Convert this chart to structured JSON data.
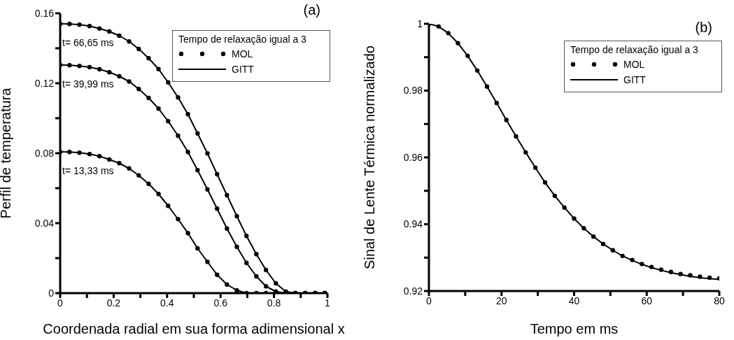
{
  "chart_data": [
    {
      "type": "line",
      "xlabel": "Coordenada radial em sua forma adimensional x",
      "ylabel": "Perfil de temperatura",
      "legend_title": "Tempo de relaxação igual a 3",
      "legend": "top right",
      "annotations": [
        "(a)",
        "t= 66,65 ms",
        "t= 39,99 ms",
        "t= 13,33 ms"
      ],
      "xlim": [
        0,
        1
      ],
      "xticks": [
        0,
        {
          "value": 0.1,
          "label": null
        },
        0.2,
        {
          "value": 0.3,
          "label": null
        },
        0.4,
        {
          "value": 0.5,
          "label": null
        },
        0.6,
        {
          "value": 0.7,
          "label": null
        },
        0.8,
        {
          "value": 0.9,
          "label": null
        },
        1
      ],
      "ylim": [
        0,
        0.16
      ],
      "yticks": [
        0,
        {
          "value": 0.02,
          "label": null
        },
        0.04,
        {
          "value": 0.06,
          "label": null
        },
        0.08,
        {
          "value": 0.1,
          "label": null
        },
        0.12,
        {
          "value": 0.14,
          "label": null
        },
        0.16
      ],
      "x": [
        0,
        0.035,
        0.072,
        0.11,
        0.147,
        0.184,
        0.221,
        0.258,
        0.294,
        0.331,
        0.368,
        0.404,
        0.441,
        0.478,
        0.514,
        0.551,
        0.587,
        0.624,
        0.661,
        0.697,
        0.734,
        0.77,
        0.807,
        0.844,
        0.88,
        0.917,
        0.954,
        0.99
      ],
      "series": [
        {
          "name": "MOL",
          "type": "scatter",
          "marker": "circle",
          "color": "#000000",
          "values": [
            0.154,
            0.1539,
            0.1535,
            0.1527,
            0.1513,
            0.1496,
            0.1472,
            0.1439,
            0.1396,
            0.1343,
            0.1281,
            0.1205,
            0.1119,
            0.1023,
            0.0913,
            0.0799,
            0.068,
            0.056,
            0.044,
            0.0327,
            0.0223,
            0.0132,
            0.0056,
            0.0009,
            0,
            0,
            0,
            0
          ]
        },
        {
          "type": "scatter",
          "marker": "circle",
          "color": "#000000",
          "values": [
            0.1305,
            0.1303,
            0.1299,
            0.1292,
            0.128,
            0.1263,
            0.124,
            0.121,
            0.1167,
            0.1116,
            0.1055,
            0.0983,
            0.09,
            0.0807,
            0.0703,
            0.0593,
            0.0483,
            0.0369,
            0.0265,
            0.0173,
            0.0096,
            0.0039,
            0.0009,
            null,
            0,
            0,
            0,
            0
          ]
        },
        {
          "type": "scatter",
          "marker": "circle",
          "color": "#000000",
          "values": [
            0.0808,
            0.0807,
            0.0803,
            0.0795,
            0.0783,
            0.0764,
            0.0743,
            0.0713,
            0.0673,
            0.0625,
            0.0567,
            0.0499,
            0.0423,
            0.0343,
            0.0256,
            0.0179,
            0.0105,
            0.0049,
            0.0016,
            0,
            0,
            0,
            null,
            null,
            0,
            0,
            0,
            0
          ]
        },
        {
          "name": "GITT",
          "line_style": "solid",
          "color": "#000000",
          "values": [
            0.154,
            0.1539,
            0.1535,
            0.1527,
            0.1513,
            0.1496,
            0.1472,
            0.1439,
            0.1396,
            0.1343,
            0.1281,
            0.1205,
            0.1119,
            0.1023,
            0.0913,
            0.0799,
            0.068,
            0.056,
            0.044,
            0.0327,
            0.0223,
            0.0132,
            0.0056,
            0.0009,
            0,
            0,
            0,
            0
          ]
        },
        {
          "line_style": "solid",
          "color": "#000000",
          "values": [
            0.1305,
            0.1303,
            0.1299,
            0.1292,
            0.128,
            0.1263,
            0.124,
            0.121,
            0.1167,
            0.1116,
            0.1055,
            0.0983,
            0.09,
            0.0807,
            0.0703,
            0.0593,
            0.0483,
            0.0369,
            0.0265,
            0.0173,
            0.0096,
            0.0039,
            0.0009,
            0,
            0,
            0,
            0,
            0
          ]
        },
        {
          "line_style": "solid",
          "color": "#000000",
          "values": [
            0.0808,
            0.0807,
            0.0803,
            0.0795,
            0.0783,
            0.0764,
            0.0743,
            0.0713,
            0.0673,
            0.0625,
            0.0567,
            0.0499,
            0.0423,
            0.0343,
            0.0256,
            0.0179,
            0.0105,
            0.0049,
            0.0016,
            0,
            0,
            0,
            0,
            0,
            0,
            0,
            0,
            0
          ]
        }
      ]
    },
    {
      "type": "line",
      "xlabel": "Tempo em ms",
      "ylabel": "Sinal de Lente Térmica normalizado",
      "legend_title": "Tempo de relaxação igual a 3",
      "legend": "top right",
      "annotations": [
        "(b)"
      ],
      "xlim": [
        0,
        80
      ],
      "xticks": [
        0,
        {
          "value": 10,
          "label": null
        },
        20,
        {
          "value": 30,
          "label": null
        },
        40,
        {
          "value": 50,
          "label": null
        },
        60,
        {
          "value": 70,
          "label": null
        },
        80
      ],
      "ylim": [
        0.92,
        1
      ],
      "yticks": [
        0.92,
        {
          "value": 0.93,
          "label": null
        },
        0.94,
        {
          "value": 0.95,
          "label": null
        },
        0.96,
        {
          "value": 0.97,
          "label": null
        },
        0.98,
        {
          "value": 0.99,
          "label": null
        },
        1
      ],
      "x": [
        0,
        2.67,
        5.33,
        8,
        10.67,
        13.33,
        16,
        18.67,
        21.33,
        24,
        26.67,
        29.33,
        32,
        34.67,
        37.33,
        40,
        42.67,
        45.33,
        48,
        50.67,
        53.33,
        56,
        58.67,
        61.33,
        64,
        66.67,
        69.33,
        72,
        74.67,
        77.33,
        80
      ],
      "series": [
        {
          "name": "MOL",
          "type": "scatter",
          "marker": "circle",
          "color": "#000000",
          "values": [
            1,
            0.9992,
            0.9972,
            0.9942,
            0.9904,
            0.986,
            0.9812,
            0.9763,
            0.9712,
            0.9663,
            0.9615,
            0.9569,
            0.9525,
            0.9485,
            0.945,
            0.9417,
            0.9388,
            0.9363,
            0.9341,
            0.9322,
            0.9305,
            0.9293,
            0.9281,
            0.9272,
            0.9264,
            0.9257,
            0.9251,
            0.9247,
            0.9243,
            0.924,
            0.9238
          ]
        },
        {
          "name": "GITT",
          "line_style": "solid",
          "color": "#000000",
          "values": [
            1,
            0.9992,
            0.9972,
            0.9942,
            0.9904,
            0.986,
            0.9812,
            0.9763,
            0.9712,
            0.9663,
            0.9615,
            0.9569,
            0.9525,
            0.9485,
            0.945,
            0.9417,
            0.9388,
            0.9363,
            0.9341,
            0.9322,
            0.9305,
            0.9292,
            0.928,
            0.927,
            0.9262,
            0.9255,
            0.9249,
            0.9244,
            0.924,
            0.9237,
            0.9235
          ]
        }
      ]
    }
  ]
}
